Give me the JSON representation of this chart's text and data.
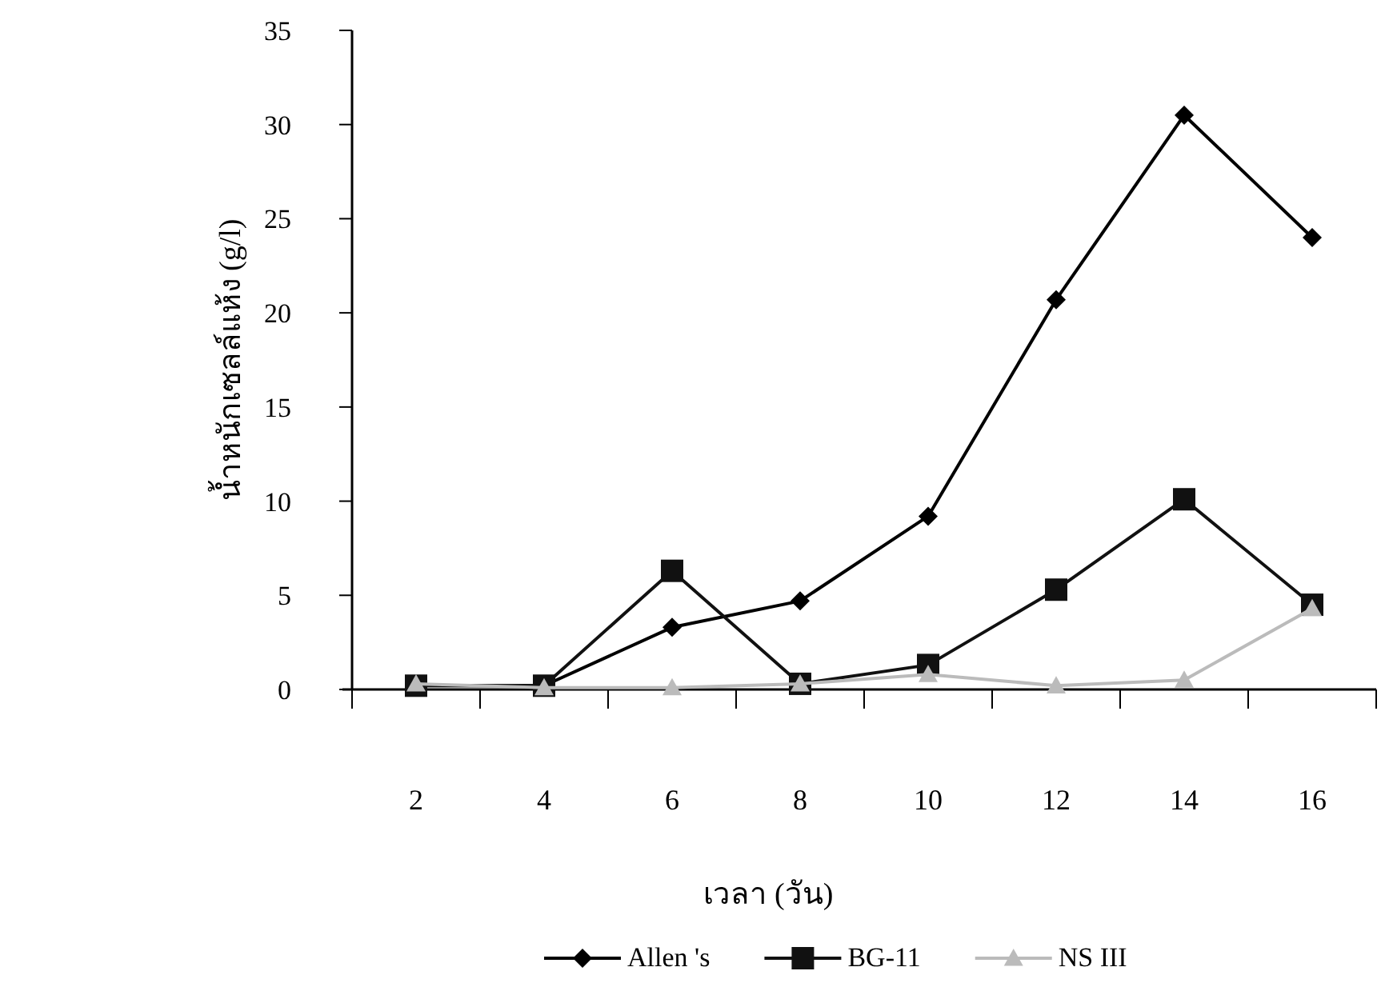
{
  "chart_data": {
    "type": "line",
    "xlabel": "เวลา (วัน)",
    "ylabel": "น้ำหนักเซลล์แห้ง (g/l)",
    "categories": [
      "2",
      "4",
      "6",
      "8",
      "10",
      "12",
      "14",
      "16"
    ],
    "series": [
      {
        "name": "Allen 's",
        "color": "#000000",
        "marker": "diamond",
        "values": [
          0.2,
          0.2,
          3.3,
          4.7,
          9.2,
          20.7,
          30.5,
          24.0
        ]
      },
      {
        "name": "BG-11",
        "color": "#111111",
        "marker": "square",
        "values": [
          0.2,
          0.2,
          6.3,
          0.3,
          1.3,
          5.3,
          10.1,
          4.5
        ]
      },
      {
        "name": "NS III",
        "color": "#bbbbbb",
        "marker": "triangle",
        "values": [
          0.3,
          0.1,
          0.1,
          0.3,
          0.8,
          0.2,
          0.5,
          4.3
        ]
      }
    ],
    "ylim": [
      0,
      35
    ],
    "yticks": [
      0,
      5,
      10,
      15,
      20,
      25,
      30,
      35
    ],
    "grid": false,
    "legend": "bottom"
  }
}
